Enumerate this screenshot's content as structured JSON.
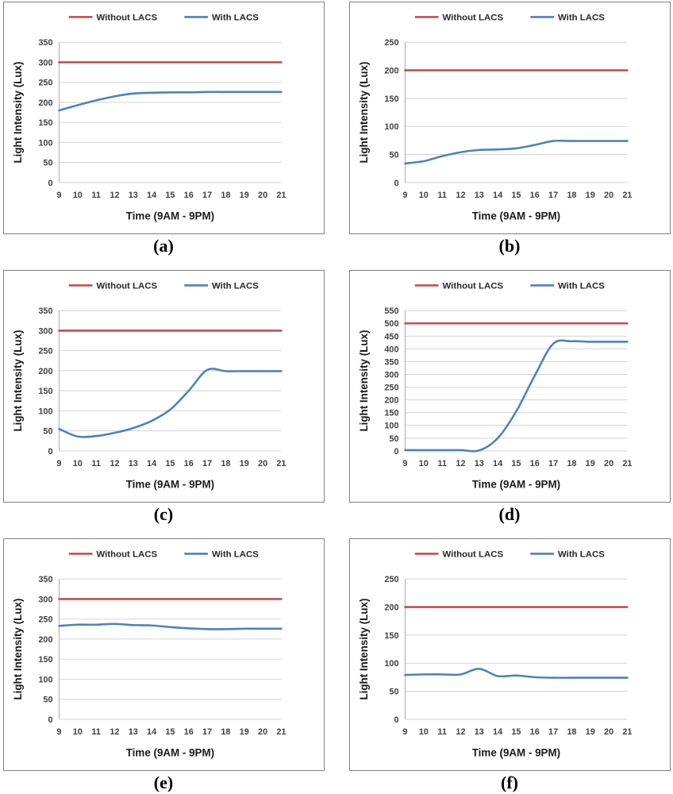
{
  "chart_data": [
    {
      "type": "line",
      "caption": "(a)",
      "xlabel": "Time (9AM - 9PM)",
      "ylabel": "Light Intensity (Lux)",
      "x": [
        9,
        10,
        11,
        12,
        13,
        14,
        15,
        16,
        17,
        18,
        19,
        20,
        21
      ],
      "ylim": [
        0,
        350
      ],
      "ystep": 50,
      "grid": true,
      "legend_position": "top",
      "legend": [
        "Without LACS",
        "With LACS"
      ],
      "series": [
        {
          "name": "Without LACS",
          "color": "#C0504D",
          "values": [
            300,
            300,
            300,
            300,
            300,
            300,
            300,
            300,
            300,
            300,
            300,
            300,
            300
          ]
        },
        {
          "name": "With LACS",
          "color": "#4F81BD",
          "values": [
            180,
            193,
            205,
            215,
            222,
            224,
            225,
            225,
            226,
            226,
            226,
            226,
            226
          ]
        }
      ]
    },
    {
      "type": "line",
      "caption": "(b)",
      "xlabel": "Time (9AM - 9PM)",
      "ylabel": "Light Intensity (Lux)",
      "x": [
        9,
        10,
        11,
        12,
        13,
        14,
        15,
        16,
        17,
        18,
        19,
        20,
        21
      ],
      "ylim": [
        0,
        250
      ],
      "ystep": 50,
      "grid": true,
      "legend_position": "top",
      "legend": [
        "Without LACS",
        "With LACS"
      ],
      "series": [
        {
          "name": "Without LACS",
          "color": "#C0504D",
          "values": [
            200,
            200,
            200,
            200,
            200,
            200,
            200,
            200,
            200,
            200,
            200,
            200,
            200
          ]
        },
        {
          "name": "With LACS",
          "color": "#4F81BD",
          "values": [
            34,
            38,
            47,
            54,
            58,
            59,
            61,
            67,
            74,
            74,
            74,
            74,
            74
          ]
        }
      ]
    },
    {
      "type": "line",
      "caption": "(c)",
      "xlabel": "Time (9AM - 9PM)",
      "ylabel": "Light Intensity (Lux)",
      "x": [
        9,
        10,
        11,
        12,
        13,
        14,
        15,
        16,
        17,
        18,
        19,
        20,
        21
      ],
      "ylim": [
        0,
        350
      ],
      "ystep": 50,
      "grid": true,
      "legend_position": "top",
      "legend": [
        "Without LACS",
        "With LACS"
      ],
      "series": [
        {
          "name": "Without LACS",
          "color": "#C0504D",
          "values": [
            300,
            300,
            300,
            300,
            300,
            300,
            300,
            300,
            300,
            300,
            300,
            300,
            300
          ]
        },
        {
          "name": "With LACS",
          "color": "#4F81BD",
          "values": [
            55,
            36,
            37,
            45,
            57,
            75,
            103,
            150,
            202,
            199,
            199,
            199,
            199
          ]
        }
      ]
    },
    {
      "type": "line",
      "caption": "(d)",
      "xlabel": "Time (9AM - 9PM)",
      "ylabel": "Light Intensity (Lux)",
      "x": [
        9,
        10,
        11,
        12,
        13,
        14,
        15,
        16,
        17,
        18,
        19,
        20,
        21
      ],
      "ylim": [
        0,
        550
      ],
      "ystep": 50,
      "grid": true,
      "legend_position": "top",
      "legend": [
        "Without LACS",
        "With LACS"
      ],
      "series": [
        {
          "name": "Without LACS",
          "color": "#C0504D",
          "values": [
            500,
            500,
            500,
            500,
            500,
            500,
            500,
            500,
            500,
            500,
            500,
            500,
            500
          ]
        },
        {
          "name": "With LACS",
          "color": "#4F81BD",
          "values": [
            3,
            3,
            3,
            3,
            2,
            50,
            155,
            295,
            420,
            430,
            428,
            428,
            428
          ]
        }
      ]
    },
    {
      "type": "line",
      "caption": "(e)",
      "xlabel": "Time (9AM - 9PM)",
      "ylabel": "Light Intensity (Lux)",
      "x": [
        9,
        10,
        11,
        12,
        13,
        14,
        15,
        16,
        17,
        18,
        19,
        20,
        21
      ],
      "ylim": [
        0,
        350
      ],
      "ystep": 50,
      "grid": true,
      "legend_position": "top",
      "legend": [
        "Without LACS",
        "With LACS"
      ],
      "series": [
        {
          "name": "Without LACS",
          "color": "#C0504D",
          "values": [
            300,
            300,
            300,
            300,
            300,
            300,
            300,
            300,
            300,
            300,
            300,
            300,
            300
          ]
        },
        {
          "name": "With LACS",
          "color": "#4F81BD",
          "values": [
            233,
            236,
            236,
            238,
            235,
            234,
            230,
            227,
            225,
            225,
            226,
            226,
            226
          ]
        }
      ]
    },
    {
      "type": "line",
      "caption": "(f)",
      "xlabel": "Time (9AM - 9PM)",
      "ylabel": "Light Intensity (Lux)",
      "x": [
        9,
        10,
        11,
        12,
        13,
        14,
        15,
        16,
        17,
        18,
        19,
        20,
        21
      ],
      "ylim": [
        0,
        250
      ],
      "ystep": 50,
      "grid": true,
      "legend_position": "top",
      "legend": [
        "Without LACS",
        "With LACS"
      ],
      "series": [
        {
          "name": "Without LACS",
          "color": "#C0504D",
          "values": [
            200,
            200,
            200,
            200,
            200,
            200,
            200,
            200,
            200,
            200,
            200,
            200,
            200
          ]
        },
        {
          "name": "With LACS",
          "color": "#4F81BD",
          "values": [
            79,
            80,
            80,
            80,
            90,
            77,
            78,
            75,
            74,
            74,
            74,
            74,
            74
          ]
        }
      ]
    }
  ]
}
